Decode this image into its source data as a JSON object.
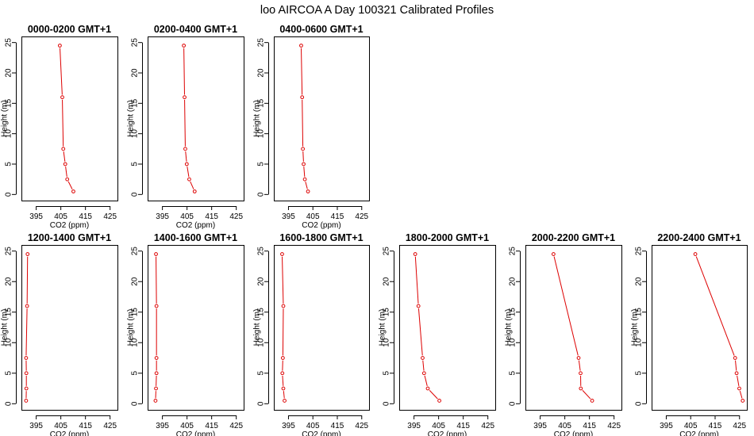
{
  "title": "loo AIRCOA A  Day 100321  Calibrated Profiles",
  "colors": {
    "series": "#dd0000",
    "axes": "#000000",
    "background": "#ffffff"
  },
  "chart_data": [
    {
      "type": "line",
      "title": "0000-0200 GMT+1",
      "xlabel": "CO2 (ppm)",
      "ylabel": "Height (m)",
      "xlim": [
        389,
        428
      ],
      "ylim": [
        -1,
        26
      ],
      "xticks": [
        395,
        405,
        415,
        425
      ],
      "yticks": [
        0,
        5,
        10,
        15,
        20,
        25
      ],
      "points": [
        [
          410.1,
          0.5
        ],
        [
          407.6,
          2.5
        ],
        [
          406.8,
          5.0
        ],
        [
          406.0,
          7.5
        ],
        [
          405.6,
          16.0
        ],
        [
          404.6,
          24.5
        ]
      ]
    },
    {
      "type": "line",
      "title": "0200-0400 GMT+1",
      "xlabel": "CO2 (ppm)",
      "ylabel": "Height (m)",
      "xlim": [
        389,
        428
      ],
      "ylim": [
        -1,
        26
      ],
      "xticks": [
        395,
        405,
        415,
        425
      ],
      "yticks": [
        0,
        5,
        10,
        15,
        20,
        25
      ],
      "points": [
        [
          408.1,
          0.5
        ],
        [
          405.9,
          2.5
        ],
        [
          404.9,
          5.0
        ],
        [
          404.3,
          7.5
        ],
        [
          404.0,
          16.0
        ],
        [
          403.7,
          24.5
        ]
      ]
    },
    {
      "type": "line",
      "title": "0400-0600 GMT+1",
      "xlabel": "CO2 (ppm)",
      "ylabel": "Height (m)",
      "xlim": [
        389,
        428
      ],
      "ylim": [
        -1,
        26
      ],
      "xticks": [
        395,
        405,
        415,
        425
      ],
      "yticks": [
        0,
        5,
        10,
        15,
        20,
        25
      ],
      "points": [
        [
          403.0,
          0.5
        ],
        [
          401.7,
          2.5
        ],
        [
          401.2,
          5.0
        ],
        [
          400.9,
          7.5
        ],
        [
          400.6,
          16.0
        ],
        [
          400.2,
          24.5
        ]
      ]
    },
    {
      "type": "line",
      "title": "1200-1400 GMT+1",
      "xlabel": "CO2 (ppm)",
      "ylabel": "Height (m)",
      "xlim": [
        389,
        428
      ],
      "ylim": [
        -1,
        26
      ],
      "xticks": [
        395,
        405,
        415,
        425
      ],
      "yticks": [
        0,
        5,
        10,
        15,
        20,
        25
      ],
      "points": [
        [
          390.9,
          0.5
        ],
        [
          391.0,
          2.5
        ],
        [
          391.0,
          5.0
        ],
        [
          390.9,
          7.5
        ],
        [
          391.3,
          16.0
        ],
        [
          391.5,
          24.5
        ]
      ]
    },
    {
      "type": "line",
      "title": "1400-1600 GMT+1",
      "xlabel": "CO2 (ppm)",
      "ylabel": "Height (m)",
      "xlim": [
        389,
        428
      ],
      "ylim": [
        -1,
        26
      ],
      "xticks": [
        395,
        405,
        415,
        425
      ],
      "yticks": [
        0,
        5,
        10,
        15,
        20,
        25
      ],
      "points": [
        [
          392.2,
          0.5
        ],
        [
          392.4,
          2.5
        ],
        [
          392.6,
          5.0
        ],
        [
          392.6,
          7.5
        ],
        [
          392.6,
          16.0
        ],
        [
          392.4,
          24.5
        ]
      ]
    },
    {
      "type": "line",
      "title": "1600-1800 GMT+1",
      "xlabel": "CO2 (ppm)",
      "ylabel": "Height (m)",
      "xlim": [
        389,
        428
      ],
      "ylim": [
        -1,
        26
      ],
      "xticks": [
        395,
        405,
        415,
        425
      ],
      "yticks": [
        0,
        5,
        10,
        15,
        20,
        25
      ],
      "points": [
        [
          393.4,
          0.5
        ],
        [
          392.9,
          2.5
        ],
        [
          392.5,
          5.0
        ],
        [
          392.7,
          7.5
        ],
        [
          392.9,
          16.0
        ],
        [
          392.4,
          24.5
        ]
      ]
    },
    {
      "type": "line",
      "title": "1800-2000 GMT+1",
      "xlabel": "CO2 (ppm)",
      "ylabel": "Height (m)",
      "xlim": [
        389,
        428
      ],
      "ylim": [
        -1,
        26
      ],
      "xticks": [
        395,
        405,
        415,
        425
      ],
      "yticks": [
        0,
        5,
        10,
        15,
        20,
        25
      ],
      "points": [
        [
          405.3,
          0.5
        ],
        [
          400.6,
          2.5
        ],
        [
          399.1,
          5.0
        ],
        [
          398.5,
          7.5
        ],
        [
          396.8,
          16.0
        ],
        [
          395.5,
          24.5
        ]
      ]
    },
    {
      "type": "line",
      "title": "2000-2200 GMT+1",
      "xlabel": "CO2 (ppm)",
      "ylabel": "Height (m)",
      "xlim": [
        389,
        428
      ],
      "ylim": [
        -1,
        26
      ],
      "xticks": [
        395,
        405,
        415,
        425
      ],
      "yticks": [
        0,
        5,
        10,
        15,
        20,
        25
      ],
      "points": [
        [
          416.1,
          0.5
        ],
        [
          411.5,
          2.5
        ],
        [
          411.4,
          5.0
        ],
        [
          410.6,
          7.5
        ],
        [
          400.4,
          24.5
        ]
      ]
    },
    {
      "type": "line",
      "title": "2200-2400 GMT+1",
      "xlabel": "CO2 (ppm)",
      "ylabel": "Height (m)",
      "xlim": [
        389,
        428
      ],
      "ylim": [
        -1,
        26
      ],
      "xticks": [
        395,
        405,
        415,
        425
      ],
      "yticks": [
        0,
        5,
        10,
        15,
        20,
        25
      ],
      "points": [
        [
          426.3,
          0.5
        ],
        [
          424.9,
          2.5
        ],
        [
          423.8,
          5.0
        ],
        [
          423.2,
          7.5
        ],
        [
          406.9,
          24.5
        ]
      ]
    }
  ]
}
